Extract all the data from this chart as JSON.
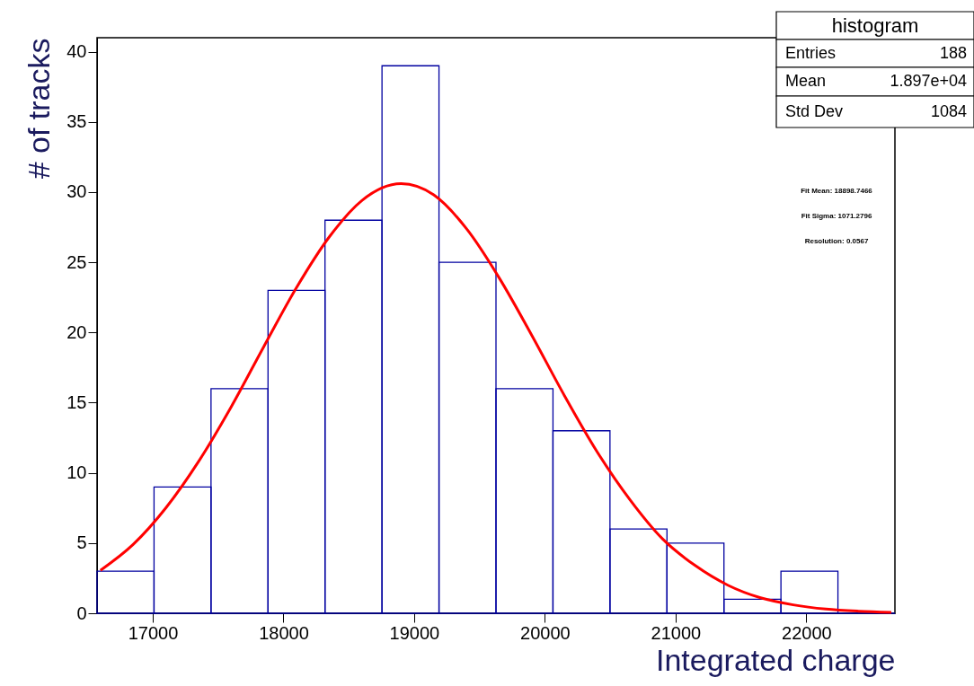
{
  "chart_data": {
    "type": "histogram",
    "xlabel": "Integrated charge",
    "ylabel": "# of tracks",
    "bins": [
      16574,
      17010,
      17446,
      17882,
      18318,
      18754,
      19190,
      19626,
      20062,
      20498,
      20934,
      21370,
      21806,
      22242,
      22678
    ],
    "values": [
      3,
      9,
      16,
      23,
      28,
      39,
      25,
      16,
      13,
      6,
      5,
      1,
      3,
      0
    ],
    "color": "#0000a0",
    "series": [
      {
        "type": "line",
        "color": "#ff0000",
        "x": [
          16600,
          16850,
          17100,
          17350,
          17600,
          17850,
          18100,
          18350,
          18600,
          18900,
          19150,
          19400,
          19650,
          19900,
          20150,
          20400,
          20650,
          20900,
          21150,
          21400,
          21650,
          21900,
          22150,
          22400,
          22650
        ],
        "values": [
          3.06,
          4.9,
          7.5,
          10.8,
          14.7,
          19.0,
          23.2,
          26.8,
          29.4,
          30.6,
          29.8,
          27.4,
          23.9,
          19.8,
          15.5,
          11.5,
          8.1,
          5.3,
          3.4,
          2.0,
          1.1,
          0.6,
          0.3,
          0.15,
          0.07
        ]
      }
    ],
    "xlim": [
      16574,
      22678
    ],
    "ylim": [
      0,
      41
    ],
    "xticks": [
      17000,
      18000,
      19000,
      20000,
      21000,
      22000
    ],
    "yticks": [
      0,
      5,
      10,
      15,
      20,
      25,
      30,
      35,
      40
    ],
    "grid": false,
    "annotations": [
      "histogram",
      "Entries",
      "188",
      "Mean",
      "1.897e+04",
      "Std Dev",
      "1084",
      "Fit Mean: 18898.7466",
      "Fit Sigma: 1071.2796",
      "Resolution: 0.0567"
    ]
  }
}
